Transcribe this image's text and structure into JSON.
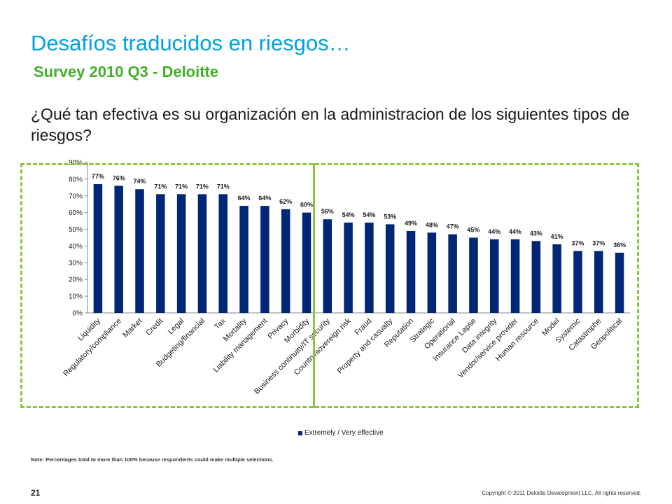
{
  "slide": {
    "title": "Desafíos traducidos en riesgos…",
    "subtitle": "Survey 2010 Q3 - Deloitte",
    "question": "¿Qué tan efectiva es su organización en la administracion de los siguientes tipos de riesgos?",
    "note": "Note:  Percentages total to more than 100% because respondents could make multiple selections.",
    "page_number": "21",
    "copyright": "Copyright © 2011 Deloitte Development LLC. All rights reserved."
  },
  "colors": {
    "bar": "#002776",
    "title": "#00a1de",
    "subtitle": "#43b02a",
    "dashed_box": "#8cc63f"
  },
  "chart_data": {
    "type": "bar",
    "title": "",
    "xlabel": "",
    "ylabel": "",
    "ylim": [
      0,
      90
    ],
    "yticks": [
      "0%",
      "10%",
      "20%",
      "30%",
      "40%",
      "50%",
      "60%",
      "70%",
      "80%",
      "90%"
    ],
    "grid": false,
    "legend_position": "bottom",
    "categories": [
      "Liquidity",
      "Regulatory/compliance",
      "Market",
      "Credit",
      "Legal",
      "Budgeting/financial",
      "Tax",
      "Mortality",
      "Liability management",
      "Privacy",
      "Morbidity",
      "Business continuity/IT security",
      "Country/sovereign risk",
      "Fraud",
      "Property and casualty",
      "Reputation",
      "Strategic",
      "Operational",
      "Insurance Lapse",
      "Data integrity",
      "Vendor/service provider",
      "Human resource",
      "Model",
      "Systemic",
      "Catastrophe",
      "Geopolitical"
    ],
    "series": [
      {
        "name": "Extremely / Very effective",
        "values": [
          77,
          76,
          74,
          71,
          71,
          71,
          71,
          64,
          64,
          62,
          60,
          56,
          54,
          54,
          53,
          49,
          48,
          47,
          45,
          44,
          44,
          43,
          41,
          37,
          37,
          36
        ],
        "labels": [
          "77%",
          "76%",
          "74%",
          "71%",
          "71%",
          "71%",
          "71%",
          "64%",
          "64%",
          "62%",
          "60%",
          "56%",
          "54%",
          "54%",
          "53%",
          "49%",
          "48%",
          "47%",
          "45%",
          "44%",
          "44%",
          "43%",
          "41%",
          "37%",
          "37%",
          "36%"
        ]
      }
    ]
  }
}
